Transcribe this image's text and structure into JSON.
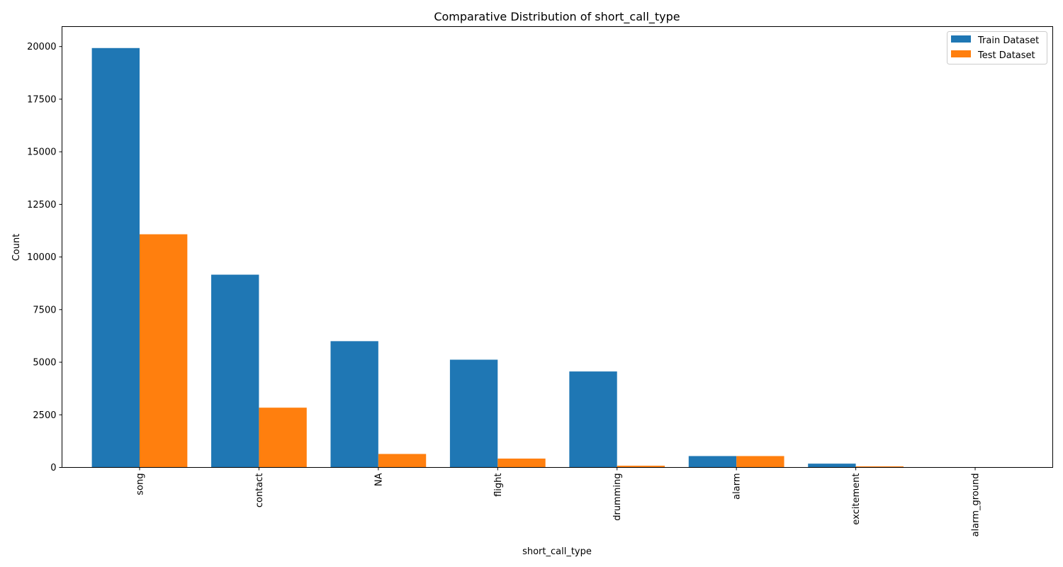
{
  "chart_data": {
    "type": "bar",
    "title": "Comparative Distribution of short_call_type",
    "xlabel": "short_call_type",
    "ylabel": "Count",
    "categories": [
      "song",
      "contact",
      "NA",
      "flight",
      "drumming",
      "alarm",
      "excitement",
      "alarm_ground"
    ],
    "series": [
      {
        "name": "Train Dataset",
        "color": "#1f77b4",
        "values": [
          19930,
          9160,
          6000,
          5120,
          4560,
          540,
          180,
          5
        ]
      },
      {
        "name": "Test Dataset",
        "color": "#ff7f0e",
        "values": [
          11080,
          2840,
          640,
          420,
          80,
          540,
          50,
          3
        ]
      }
    ],
    "ylim": [
      0,
      20950
    ],
    "yticks": [
      0,
      2500,
      5000,
      7500,
      10000,
      12500,
      15000,
      17500,
      20000
    ],
    "grid": false,
    "legend_position": "top-right"
  }
}
